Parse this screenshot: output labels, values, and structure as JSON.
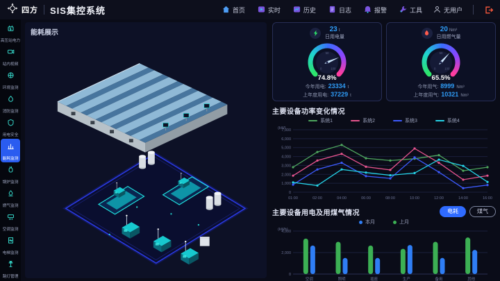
{
  "header": {
    "logo_text": "四方",
    "app_title": "SIS集控系统",
    "nav": [
      {
        "label": "首页",
        "icon": "home-icon"
      },
      {
        "label": "实时",
        "icon": "realtime-icon"
      },
      {
        "label": "历史",
        "icon": "history-icon"
      },
      {
        "label": "日志",
        "icon": "log-icon"
      },
      {
        "label": "报警",
        "icon": "alarm-icon"
      },
      {
        "label": "工具",
        "icon": "tools-icon"
      }
    ],
    "user_label": "无用户"
  },
  "sidebar": {
    "items": [
      {
        "label": "高压站电力",
        "icon": "transformer-icon",
        "active": false
      },
      {
        "label": "站内视频",
        "icon": "camera-icon",
        "active": false
      },
      {
        "label": "环境监测",
        "icon": "environment-icon",
        "active": false
      },
      {
        "label": "消防监测",
        "icon": "fire-icon",
        "active": false
      },
      {
        "label": "用电安全",
        "icon": "electric-safety-icon",
        "active": false
      },
      {
        "label": "能耗监测",
        "icon": "energy-icon",
        "active": true
      },
      {
        "label": "锅炉监测",
        "icon": "boiler-icon",
        "active": false
      },
      {
        "label": "燃气监测",
        "icon": "gas-icon",
        "active": false
      },
      {
        "label": "空调监测",
        "icon": "ac-icon",
        "active": false
      },
      {
        "label": "电梯监测",
        "icon": "elevator-icon",
        "active": false
      },
      {
        "label": "路灯管理",
        "icon": "streetlamp-icon",
        "active": false
      }
    ]
  },
  "left_panel": {
    "title": "能耗展示"
  },
  "cards": [
    {
      "icon": "electricity-icon",
      "daily_value": "23",
      "daily_unit": "t",
      "daily_label": "日用电量",
      "gauge_percent": 74.8,
      "gauge_display": "74.8%",
      "gauge_ticks": [
        "0",
        "50",
        "100"
      ],
      "rows": [
        {
          "label": "今年用电:",
          "value": "23334",
          "unit": "t"
        },
        {
          "label": "上年度用电:",
          "value": "37229",
          "unit": "t"
        }
      ]
    },
    {
      "icon": "flame-icon",
      "daily_value": "20",
      "daily_unit": "Nm³",
      "daily_label": "日用燃气量",
      "gauge_percent": 65.5,
      "gauge_display": "65.5%",
      "gauge_ticks": [
        "0",
        "50",
        "100"
      ],
      "rows": [
        {
          "label": "今年用气:",
          "value": "8999",
          "unit": "Nm³"
        },
        {
          "label": "上年度用气:",
          "value": "10321",
          "unit": "Nm³"
        }
      ]
    }
  ],
  "power_section": {
    "title": "主要设备功率变化情况"
  },
  "energy_section": {
    "title": "主要设备用电及用煤气情况",
    "toggles": [
      {
        "label": "电耗",
        "active": true
      },
      {
        "label": "煤气",
        "active": false
      }
    ]
  },
  "chart_data": [
    {
      "type": "line",
      "title": "主要设备功率变化情况",
      "ylabel": "(kW)",
      "ylim": [
        0,
        7000
      ],
      "ytick_step": 1000,
      "grid": true,
      "legend_position": "top",
      "x": [
        "01:00",
        "02:00",
        "04:00",
        "06:00",
        "08:00",
        "10:00",
        "12:00",
        "14:00",
        "16:00"
      ],
      "series": [
        {
          "name": "系统1",
          "color": "#4fa85f",
          "values": [
            2800,
            4500,
            5300,
            3800,
            3550,
            3750,
            4150,
            2400,
            2800
          ]
        },
        {
          "name": "系统2",
          "color": "#e8548e",
          "values": [
            1850,
            3550,
            4300,
            2850,
            2500,
            4900,
            3300,
            1400,
            1850
          ]
        },
        {
          "name": "系统3",
          "color": "#3d5bff",
          "values": [
            850,
            2550,
            3300,
            1800,
            1550,
            3900,
            2250,
            450,
            800
          ]
        },
        {
          "name": "系统4",
          "color": "#25d4e8",
          "values": [
            1100,
            750,
            2550,
            2200,
            1900,
            2150,
            3650,
            2950,
            1150
          ]
        }
      ]
    },
    {
      "type": "bar",
      "title": "主要设备用电及用煤气情况",
      "ylabel": "(kWh)",
      "ylim": [
        0,
        4000
      ],
      "ytick_step": 2000,
      "grid": true,
      "categories": [
        "空调",
        "照明",
        "插座",
        "生产",
        "备用",
        "其他"
      ],
      "series": [
        {
          "name": "上月",
          "color": "#3cb054",
          "values": [
            3300,
            3000,
            2650,
            2350,
            3000,
            3400
          ]
        },
        {
          "name": "本月",
          "color": "#2f7ef5",
          "values": [
            2650,
            1500,
            1500,
            2700,
            1500,
            2250
          ]
        }
      ],
      "legend": [
        {
          "label": "本月",
          "color": "#2f7ef5"
        },
        {
          "label": "上月",
          "color": "#3cb054"
        }
      ]
    }
  ],
  "colors": {
    "accent_blue": "#2a5cf0",
    "value_blue": "#2f9bf5",
    "sidebar_teal": "#35d6c8",
    "gauge_gradient": [
      "#2ee56b",
      "#1fd4d0",
      "#3b6cff",
      "#8a46ff",
      "#ff3d9e"
    ],
    "logout_orange": "#ff5a3c"
  }
}
